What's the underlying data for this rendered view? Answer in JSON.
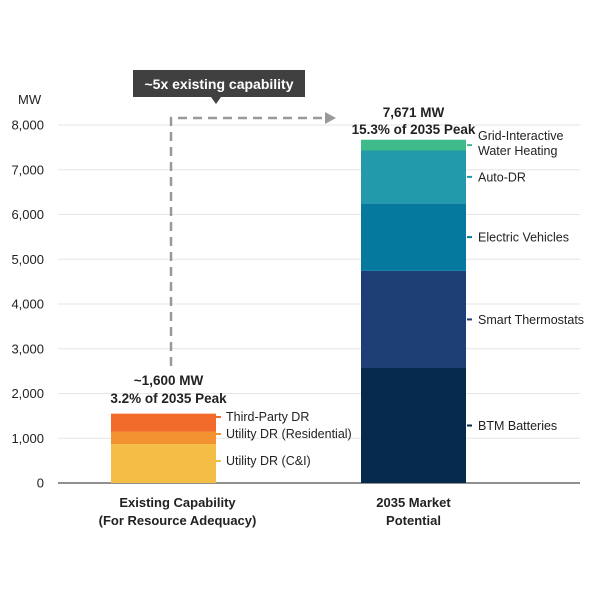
{
  "chart_data": {
    "type": "bar",
    "stacked": true,
    "ylabel": "MW",
    "ylim": [
      0,
      8000
    ],
    "yticks": [
      0,
      1000,
      2000,
      3000,
      4000,
      5000,
      6000,
      7000,
      8000
    ],
    "ytick_labels": [
      "0",
      "1,000",
      "2,000",
      "3,000",
      "4,000",
      "5,000",
      "6,000",
      "7,000",
      "8,000"
    ],
    "grid": true,
    "categories": [
      {
        "label_lines": [
          "Existing Capability",
          "(For Resource Adequacy)"
        ],
        "total_lines": [
          "~1,600 MW",
          "3.2% of 2035 Peak"
        ],
        "segments": [
          {
            "name": "Utility DR (C&I)",
            "value": 870,
            "color": "#F4BD45"
          },
          {
            "name": "Utility DR (Residential)",
            "value": 280,
            "color": "#F39231"
          },
          {
            "name": "Third-Party DR",
            "value": 400,
            "color": "#F26B2A"
          }
        ]
      },
      {
        "label_lines": [
          "2035 Market",
          "Potential"
        ],
        "total_lines": [
          "7,671 MW",
          "15.3% of 2035 Peak"
        ],
        "segments": [
          {
            "name": "BTM Batteries",
            "value": 2570,
            "color": "#062A4E"
          },
          {
            "name": "Smart Thermostats",
            "value": 2170,
            "color": "#1E3F76"
          },
          {
            "name": "Electric Vehicles",
            "value": 1510,
            "color": "#06799F"
          },
          {
            "name": "Auto-DR",
            "value": 1180,
            "color": "#2399AC"
          },
          {
            "name": "Grid-Interactive Water Heating",
            "value": 241,
            "color": "#3FBA8B"
          }
        ]
      }
    ],
    "annotation": "~5x existing capability",
    "colors": {
      "callout_bg": "#404040",
      "arrow": "#999999",
      "grid": "#e6e6e6",
      "axis": "#222222"
    }
  }
}
